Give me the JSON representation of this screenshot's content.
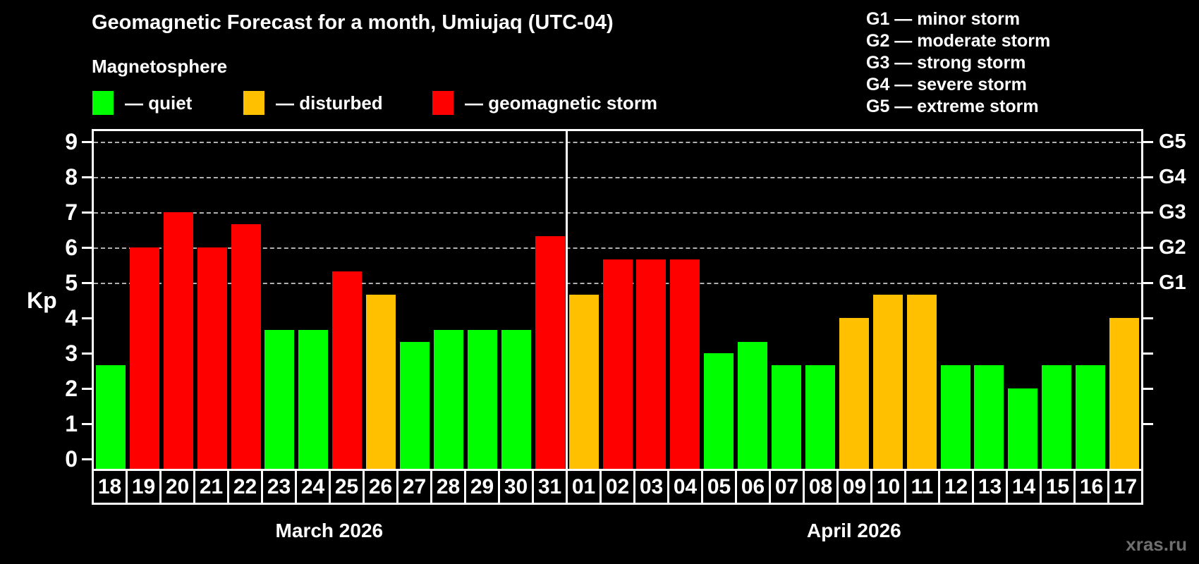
{
  "header": {
    "title": "Geomagnetic Forecast for a month, Umiujaq (UTC-04)",
    "subtitle": "Magnetosphere"
  },
  "legend": {
    "items": [
      {
        "key": "quiet",
        "label": "— quiet"
      },
      {
        "key": "disturbed",
        "label": "— disturbed"
      },
      {
        "key": "storm",
        "label": "— geomagnetic storm"
      }
    ]
  },
  "status_colors": {
    "quiet": "#00ff00",
    "disturbed": "#ffc000",
    "storm": "#ff0000"
  },
  "g_legend": {
    "lines": [
      "G1 — minor storm",
      "G2 — moderate storm",
      "G3 — strong storm",
      "G4 — severe storm",
      "G5 — extreme storm"
    ]
  },
  "watermark": "xras.ru",
  "chart_data": {
    "type": "bar",
    "title": "Geomagnetic Forecast for a month, Umiujaq (UTC-04)",
    "ylabel": "Kp",
    "ylim": [
      0,
      9
    ],
    "yticks": [
      0,
      1,
      2,
      3,
      4,
      5,
      6,
      7,
      8,
      9
    ],
    "gridlines_at": [
      5,
      6,
      7,
      8,
      9
    ],
    "grid": "dashed-horizontal",
    "legend_position": "top",
    "right_axis_labels": [
      {
        "value": 9,
        "label": "G5"
      },
      {
        "value": 8,
        "label": "G4"
      },
      {
        "value": 7,
        "label": "G3"
      },
      {
        "value": 6,
        "label": "G2"
      },
      {
        "value": 5,
        "label": "G1"
      }
    ],
    "months": [
      {
        "label": "March 2026",
        "days": 14
      },
      {
        "label": "April 2026",
        "days": 17
      }
    ],
    "bars": [
      {
        "day": "18",
        "month": "March 2026",
        "value": 2.67,
        "status": "quiet"
      },
      {
        "day": "19",
        "month": "March 2026",
        "value": 6.0,
        "status": "storm"
      },
      {
        "day": "20",
        "month": "March 2026",
        "value": 7.0,
        "status": "storm"
      },
      {
        "day": "21",
        "month": "March 2026",
        "value": 6.0,
        "status": "storm"
      },
      {
        "day": "22",
        "month": "March 2026",
        "value": 6.67,
        "status": "storm"
      },
      {
        "day": "23",
        "month": "March 2026",
        "value": 3.67,
        "status": "quiet"
      },
      {
        "day": "24",
        "month": "March 2026",
        "value": 3.67,
        "status": "quiet"
      },
      {
        "day": "25",
        "month": "March 2026",
        "value": 5.33,
        "status": "storm"
      },
      {
        "day": "26",
        "month": "March 2026",
        "value": 4.67,
        "status": "disturbed"
      },
      {
        "day": "27",
        "month": "March 2026",
        "value": 3.33,
        "status": "quiet"
      },
      {
        "day": "28",
        "month": "March 2026",
        "value": 3.67,
        "status": "quiet"
      },
      {
        "day": "29",
        "month": "March 2026",
        "value": 3.67,
        "status": "quiet"
      },
      {
        "day": "30",
        "month": "March 2026",
        "value": 3.67,
        "status": "quiet"
      },
      {
        "day": "31",
        "month": "March 2026",
        "value": 6.33,
        "status": "storm"
      },
      {
        "day": "01",
        "month": "April 2026",
        "value": 4.67,
        "status": "disturbed"
      },
      {
        "day": "02",
        "month": "April 2026",
        "value": 5.67,
        "status": "storm"
      },
      {
        "day": "03",
        "month": "April 2026",
        "value": 5.67,
        "status": "storm"
      },
      {
        "day": "04",
        "month": "April 2026",
        "value": 5.67,
        "status": "storm"
      },
      {
        "day": "05",
        "month": "April 2026",
        "value": 3.0,
        "status": "quiet"
      },
      {
        "day": "06",
        "month": "April 2026",
        "value": 3.33,
        "status": "quiet"
      },
      {
        "day": "07",
        "month": "April 2026",
        "value": 2.67,
        "status": "quiet"
      },
      {
        "day": "08",
        "month": "April 2026",
        "value": 2.67,
        "status": "quiet"
      },
      {
        "day": "09",
        "month": "April 2026",
        "value": 4.0,
        "status": "disturbed"
      },
      {
        "day": "10",
        "month": "April 2026",
        "value": 4.67,
        "status": "disturbed"
      },
      {
        "day": "11",
        "month": "April 2026",
        "value": 4.67,
        "status": "disturbed"
      },
      {
        "day": "12",
        "month": "April 2026",
        "value": 2.67,
        "status": "quiet"
      },
      {
        "day": "13",
        "month": "April 2026",
        "value": 2.67,
        "status": "quiet"
      },
      {
        "day": "14",
        "month": "April 2026",
        "value": 2.0,
        "status": "quiet"
      },
      {
        "day": "15",
        "month": "April 2026",
        "value": 2.67,
        "status": "quiet"
      },
      {
        "day": "16",
        "month": "April 2026",
        "value": 2.67,
        "status": "quiet"
      },
      {
        "day": "17",
        "month": "April 2026",
        "value": 4.0,
        "status": "disturbed"
      }
    ]
  }
}
